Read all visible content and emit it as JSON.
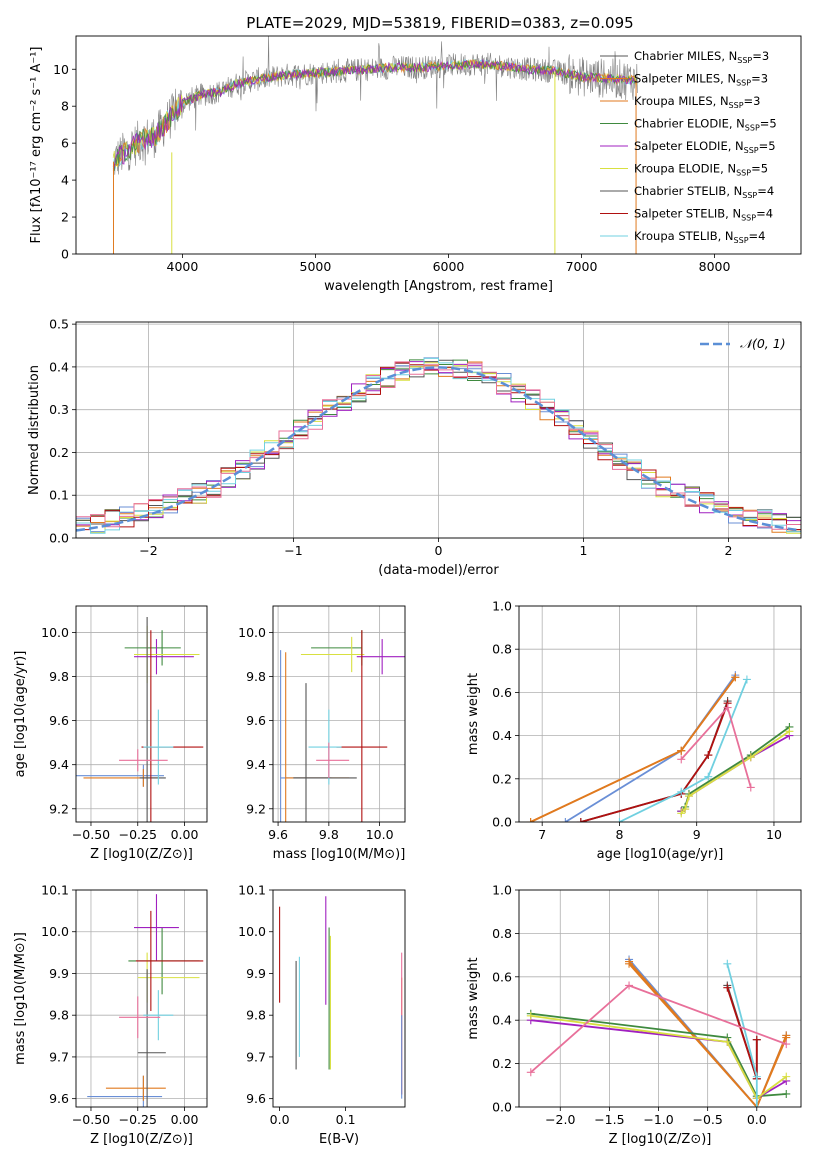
{
  "figure_title": "PLATE=2029, MJD=53819, FIBERID=0383, z=0.095",
  "colors": {
    "Chabrier MILES": "#6a8fd6",
    "Salpeter MILES": "#e07a1f",
    "Kroupa MILES": "#e07a1f",
    "Chabrier ELODIE": "#3f8a3f",
    "Salpeter ELODIE": "#a020c0",
    "Kroupa ELODIE": "#d8e040",
    "Chabrier STELIB": "#555555",
    "Salpeter STELIB": "#b01010",
    "Kroupa STELIB": "#70d0e0",
    "pink": "#e8709a",
    "gaussian": "#5b8fd6",
    "data": "#808080"
  },
  "chart_data": [
    {
      "id": "spectrum",
      "type": "line",
      "title": "PLATE=2029, MJD=53819, FIBERID=0383, z=0.095",
      "xlabel": "wavelength [Angstrom, rest frame]",
      "ylabel": "Flux [fλ10⁻¹⁷ erg cm⁻² s⁻¹ A⁻¹]",
      "xlim": [
        3200,
        8650
      ],
      "ylim": [
        0,
        11.8
      ],
      "xticks": [
        4000,
        5000,
        6000,
        7000,
        8000
      ],
      "yticks": [
        0,
        2,
        4,
        6,
        8,
        10
      ],
      "grid": false,
      "legend_position": "top-right",
      "legend": [
        "Chabrier MILES, N_SSP=3",
        "Salpeter MILES, N_SSP=3",
        "Kroupa MILES, N_SSP=3",
        "Chabrier ELODIE, N_SSP=5",
        "Salpeter ELODIE, N_SSP=5",
        "Kroupa ELODIE, N_SSP=5",
        "Chabrier STELIB, N_SSP=4",
        "Salpeter STELIB, N_SSP=4",
        "Kroupa STELIB, N_SSP=4"
      ],
      "continuum": {
        "wavelength": [
          3480,
          3600,
          3700,
          3800,
          3900,
          4000,
          4100,
          4200,
          4300,
          4400,
          4600,
          4800,
          5000,
          5200,
          5400,
          5600,
          5800,
          6000,
          6200,
          6400,
          6600,
          6800,
          7000,
          7200,
          7400
        ],
        "flux": [
          5.0,
          5.7,
          6.2,
          6.4,
          7.3,
          8.2,
          8.5,
          8.7,
          8.8,
          9.2,
          9.5,
          9.7,
          9.8,
          9.9,
          10.0,
          10.1,
          10.1,
          10.2,
          10.3,
          10.2,
          10.0,
          9.9,
          9.6,
          9.5,
          9.4
        ]
      }
    },
    {
      "id": "residuals",
      "type": "line",
      "xlabel": "(data-model)/error",
      "ylabel": "Normed distribution",
      "xlim": [
        -2.5,
        2.5
      ],
      "ylim": [
        0,
        0.505
      ],
      "xticks": [
        -2,
        -1,
        0,
        1,
        2
      ],
      "yticks": [
        0.0,
        0.1,
        0.2,
        0.3,
        0.4,
        0.5
      ],
      "grid": true,
      "legend_position": "top-right",
      "legend": [
        "𝒩(0, 1)"
      ],
      "gaussian": {
        "mean": 0,
        "sigma": 1
      }
    },
    {
      "id": "age_vs_Z",
      "type": "scatter",
      "xlabel": "Z [log10(Z/Z⊙)]",
      "ylabel": "age  [log10(age/yr)]",
      "xlim": [
        -0.58,
        0.12
      ],
      "ylim": [
        9.14,
        10.12
      ],
      "xticks": [
        -0.5,
        -0.25,
        0.0
      ],
      "yticks": [
        9.2,
        9.4,
        9.6,
        9.8,
        10.0
      ],
      "grid": true,
      "points": [
        {
          "model": "Chabrier MILES",
          "x": -0.22,
          "y": 9.35,
          "xerr": [
            0.52,
            0.11
          ],
          "yerr": 0.05
        },
        {
          "model": "Salpeter MILES",
          "x": -0.22,
          "y": 9.34,
          "xerr": [
            0.32,
            0.08
          ],
          "yerr": 0.04
        },
        {
          "model": "Chabrier ELODIE",
          "x": -0.12,
          "y": 9.93,
          "xerr": [
            0.2,
            0.1
          ],
          "yerr": 0.08
        },
        {
          "model": "Salpeter ELODIE",
          "x": -0.15,
          "y": 9.89,
          "xerr": [
            0.12,
            0.2
          ],
          "yerr": 0.08
        },
        {
          "model": "Kroupa ELODIE",
          "x": -0.2,
          "y": 9.9,
          "xerr": [
            0.07,
            0.28
          ],
          "yerr": 0.13
        },
        {
          "model": "Chabrier STELIB",
          "x": -0.2,
          "y": 9.34,
          "xerr": [
            0.04,
            0.1
          ],
          "yerr": 0.73
        },
        {
          "model": "Salpeter STELIB",
          "x": -0.18,
          "y": 9.48,
          "xerr": [
            0.05,
            0.28
          ],
          "yerr": 0.53
        },
        {
          "model": "Kroupa STELIB",
          "x": -0.14,
          "y": 9.48,
          "xerr": [
            0.08,
            0.08
          ],
          "yerr": 0.17
        },
        {
          "model": "pink",
          "x": -0.25,
          "y": 9.42,
          "xerr": [
            0.1,
            0.16
          ],
          "yerr": 0.05
        }
      ]
    },
    {
      "id": "age_vs_mass",
      "type": "scatter",
      "xlabel": "mass [log10(M/M⊙)]",
      "ylabel": "",
      "xlim": [
        9.58,
        10.1
      ],
      "ylim": [
        9.14,
        10.12
      ],
      "xticks": [
        9.6,
        9.8,
        10.0
      ],
      "yticks": [
        9.2,
        9.4,
        9.6,
        9.8,
        10.0
      ],
      "grid": true,
      "points": [
        {
          "model": "Chabrier MILES",
          "x": 9.61,
          "y": 9.34,
          "xerr": [
            0.0,
            0.2
          ],
          "yerr": 0.58
        },
        {
          "model": "Salpeter MILES",
          "x": 9.63,
          "y": 9.34,
          "xerr": [
            0.0,
            0.25
          ],
          "yerr": 0.57
        },
        {
          "model": "Chabrier ELODIE",
          "x": 9.93,
          "y": 9.93,
          "xerr": [
            0.2,
            0.0
          ],
          "yerr": 0.08
        },
        {
          "model": "Salpeter ELODIE",
          "x": 10.01,
          "y": 9.89,
          "xerr": [
            0.1,
            0.1
          ],
          "yerr": 0.08
        },
        {
          "model": "Kroupa ELODIE",
          "x": 9.89,
          "y": 9.9,
          "xerr": [
            0.2,
            0.05
          ],
          "yerr": 0.08
        },
        {
          "model": "Chabrier STELIB",
          "x": 9.71,
          "y": 9.34,
          "xerr": [
            0.05,
            0.2
          ],
          "yerr": 0.43
        },
        {
          "model": "Salpeter STELIB",
          "x": 9.93,
          "y": 9.48,
          "xerr": [
            0.1,
            0.1
          ],
          "yerr": 0.53
        },
        {
          "model": "Kroupa STELIB",
          "x": 9.8,
          "y": 9.48,
          "xerr": [
            0.08,
            0.05
          ],
          "yerr": 0.17
        },
        {
          "model": "pink",
          "x": 9.8,
          "y": 9.42,
          "xerr": [
            0.05,
            0.08
          ],
          "yerr": 0.08
        }
      ]
    },
    {
      "id": "weight_vs_age",
      "type": "line",
      "xlabel": "age  [log10(age/yr)]",
      "ylabel": "mass weight",
      "xlim": [
        6.7,
        10.35
      ],
      "ylim": [
        0,
        1.0
      ],
      "xticks": [
        7,
        8,
        9,
        10
      ],
      "yticks": [
        0.0,
        0.2,
        0.4,
        0.6,
        0.8,
        1.0
      ],
      "grid": true,
      "series": [
        {
          "model": "Chabrier MILES",
          "x": [
            7.3,
            8.8,
            9.5
          ],
          "y": [
            0.0,
            0.33,
            0.68
          ]
        },
        {
          "model": "Salpeter MILES",
          "x": [
            6.85,
            8.8,
            9.5
          ],
          "y": [
            0.0,
            0.33,
            0.67
          ]
        },
        {
          "model": "Kroupa MILES",
          "x": [
            6.85,
            8.8,
            9.5
          ],
          "y": [
            0.0,
            0.33,
            0.67
          ]
        },
        {
          "model": "Chabrier ELODIE",
          "x": [
            8.8,
            8.85,
            8.9,
            9.7,
            10.2
          ],
          "y": [
            0.05,
            0.07,
            0.13,
            0.31,
            0.44
          ]
        },
        {
          "model": "Salpeter ELODIE",
          "x": [
            8.8,
            8.85,
            8.9,
            9.7,
            10.2
          ],
          "y": [
            0.05,
            0.06,
            0.12,
            0.3,
            0.4
          ]
        },
        {
          "model": "Kroupa ELODIE",
          "x": [
            8.8,
            8.85,
            8.9,
            9.7,
            10.2
          ],
          "y": [
            0.04,
            0.06,
            0.12,
            0.3,
            0.42
          ]
        },
        {
          "model": "Chabrier STELIB",
          "x": [
            7.5,
            8.8,
            9.15,
            9.4
          ],
          "y": [
            0.0,
            0.13,
            0.31,
            0.56
          ]
        },
        {
          "model": "Salpeter STELIB",
          "x": [
            7.5,
            8.8,
            9.15,
            9.4
          ],
          "y": [
            0.0,
            0.13,
            0.31,
            0.55
          ]
        },
        {
          "model": "Kroupa STELIB",
          "x": [
            8.0,
            8.8,
            9.15,
            9.65
          ],
          "y": [
            0.0,
            0.14,
            0.21,
            0.66
          ]
        },
        {
          "model": "pink",
          "x": [
            8.8,
            9.4,
            9.7
          ],
          "y": [
            0.29,
            0.53,
            0.16
          ]
        }
      ]
    },
    {
      "id": "mass_vs_Z",
      "type": "scatter",
      "xlabel": "Z [log10(Z/Z⊙)]",
      "ylabel": "mass [log10(M/M⊙)]",
      "xlim": [
        -0.58,
        0.12
      ],
      "ylim": [
        9.58,
        10.1
      ],
      "xticks": [
        -0.5,
        -0.25,
        0.0
      ],
      "yticks": [
        9.6,
        9.7,
        9.8,
        9.9,
        10.0,
        10.1
      ],
      "grid": true,
      "points": [
        {
          "model": "Chabrier MILES",
          "x": -0.22,
          "y": 9.605,
          "xerr": [
            0.3,
            0.1
          ],
          "yerr": 0.05
        },
        {
          "model": "Salpeter MILES",
          "x": -0.22,
          "y": 9.625,
          "xerr": [
            0.2,
            0.12
          ],
          "yerr": 0.03
        },
        {
          "model": "Chabrier ELODIE",
          "x": -0.12,
          "y": 9.93,
          "xerr": [
            0.18,
            0.2
          ],
          "yerr": 0.08
        },
        {
          "model": "Salpeter ELODIE",
          "x": -0.15,
          "y": 10.01,
          "xerr": [
            0.12,
            0.12
          ],
          "yerr": 0.08
        },
        {
          "model": "Kroupa ELODIE",
          "x": -0.2,
          "y": 9.89,
          "xerr": [
            0.05,
            0.28
          ],
          "yerr": 0.06
        },
        {
          "model": "Chabrier STELIB",
          "x": -0.2,
          "y": 9.71,
          "xerr": [
            0.05,
            0.1
          ],
          "yerr": 0.2
        },
        {
          "model": "Salpeter STELIB",
          "x": -0.18,
          "y": 9.93,
          "xerr": [
            0.08,
            0.28
          ],
          "yerr": 0.12
        },
        {
          "model": "Kroupa STELIB",
          "x": -0.14,
          "y": 9.8,
          "xerr": [
            0.08,
            0.08
          ],
          "yerr": 0.06
        },
        {
          "model": "pink",
          "x": -0.25,
          "y": 9.795,
          "xerr": [
            0.1,
            0.12
          ],
          "yerr": 0.05
        }
      ]
    },
    {
      "id": "mass_vs_ebv",
      "type": "scatter",
      "xlabel": "E(B-V)",
      "ylabel": "",
      "xlim": [
        -0.01,
        0.19
      ],
      "ylim": [
        9.58,
        10.1
      ],
      "xticks": [
        0.0,
        0.1
      ],
      "yticks": [
        9.6,
        9.7,
        9.8,
        9.9,
        10.0,
        10.1
      ],
      "grid": false,
      "points": [
        {
          "model": "Salpeter STELIB",
          "x": 0.0,
          "y": 9.945,
          "yerr": 0.115
        },
        {
          "model": "Kroupa STELIB",
          "x": 0.03,
          "y": 9.82,
          "yerr": 0.12
        },
        {
          "model": "Chabrier STELIB",
          "x": 0.025,
          "y": 9.8,
          "yerr": 0.13
        },
        {
          "model": "Salpeter ELODIE",
          "x": 0.07,
          "y": 9.955,
          "yerr": 0.13
        },
        {
          "model": "Chabrier ELODIE",
          "x": 0.075,
          "y": 9.84,
          "yerr": 0.17
        },
        {
          "model": "Kroupa ELODIE",
          "x": 0.077,
          "y": 9.83,
          "yerr": 0.16
        },
        {
          "model": "Salpeter MILES",
          "x": 0.185,
          "y": 9.75,
          "yerr": 0.14
        },
        {
          "model": "pink",
          "x": 0.185,
          "y": 9.78,
          "yerr": 0.17
        },
        {
          "model": "Chabrier MILES",
          "x": 0.185,
          "y": 9.7,
          "yerr": 0.1
        }
      ]
    },
    {
      "id": "weight_vs_Z",
      "type": "line",
      "xlabel": "Z [log10(Z/Z⊙)]",
      "ylabel": "mass weight",
      "xlim": [
        -2.42,
        0.45
      ],
      "ylim": [
        0,
        1.0
      ],
      "xticks": [
        -2.0,
        -1.5,
        -1.0,
        -0.5,
        0.0
      ],
      "yticks": [
        0.0,
        0.2,
        0.4,
        0.6,
        0.8,
        1.0
      ],
      "grid": true,
      "series": [
        {
          "model": "Chabrier MILES",
          "x": [
            -1.3,
            0.0,
            0.3
          ],
          "y": [
            0.68,
            0.0,
            0.33
          ]
        },
        {
          "model": "Salpeter MILES",
          "x": [
            -1.3,
            0.0,
            0.3
          ],
          "y": [
            0.67,
            0.0,
            0.33
          ]
        },
        {
          "model": "Kroupa MILES",
          "x": [
            -1.3,
            0.0,
            0.3
          ],
          "y": [
            0.66,
            0.0,
            0.32
          ]
        },
        {
          "model": "Chabrier ELODIE",
          "x": [
            -2.3,
            -0.3,
            0.0,
            0.3
          ],
          "y": [
            0.43,
            0.32,
            0.05,
            0.06
          ]
        },
        {
          "model": "Salpeter ELODIE",
          "x": [
            -2.3,
            -0.3,
            0.0,
            0.3
          ],
          "y": [
            0.4,
            0.3,
            0.04,
            0.12
          ]
        },
        {
          "model": "Kroupa ELODIE",
          "x": [
            -2.3,
            -0.3,
            0.0,
            0.3
          ],
          "y": [
            0.42,
            0.3,
            0.04,
            0.14
          ]
        },
        {
          "model": "Chabrier STELIB",
          "x": [
            -0.3,
            0.0,
            0.0
          ],
          "y": [
            0.56,
            0.13,
            0.31
          ]
        },
        {
          "model": "Salpeter STELIB",
          "x": [
            -0.3,
            0.0,
            0.0
          ],
          "y": [
            0.55,
            0.13,
            0.31
          ]
        },
        {
          "model": "Kroupa STELIB",
          "x": [
            -0.3,
            0.0,
            0.0
          ],
          "y": [
            0.66,
            0.14,
            0.0
          ]
        },
        {
          "model": "pink",
          "x": [
            -2.3,
            -1.3,
            0.3
          ],
          "y": [
            0.16,
            0.56,
            0.29
          ]
        }
      ]
    }
  ]
}
